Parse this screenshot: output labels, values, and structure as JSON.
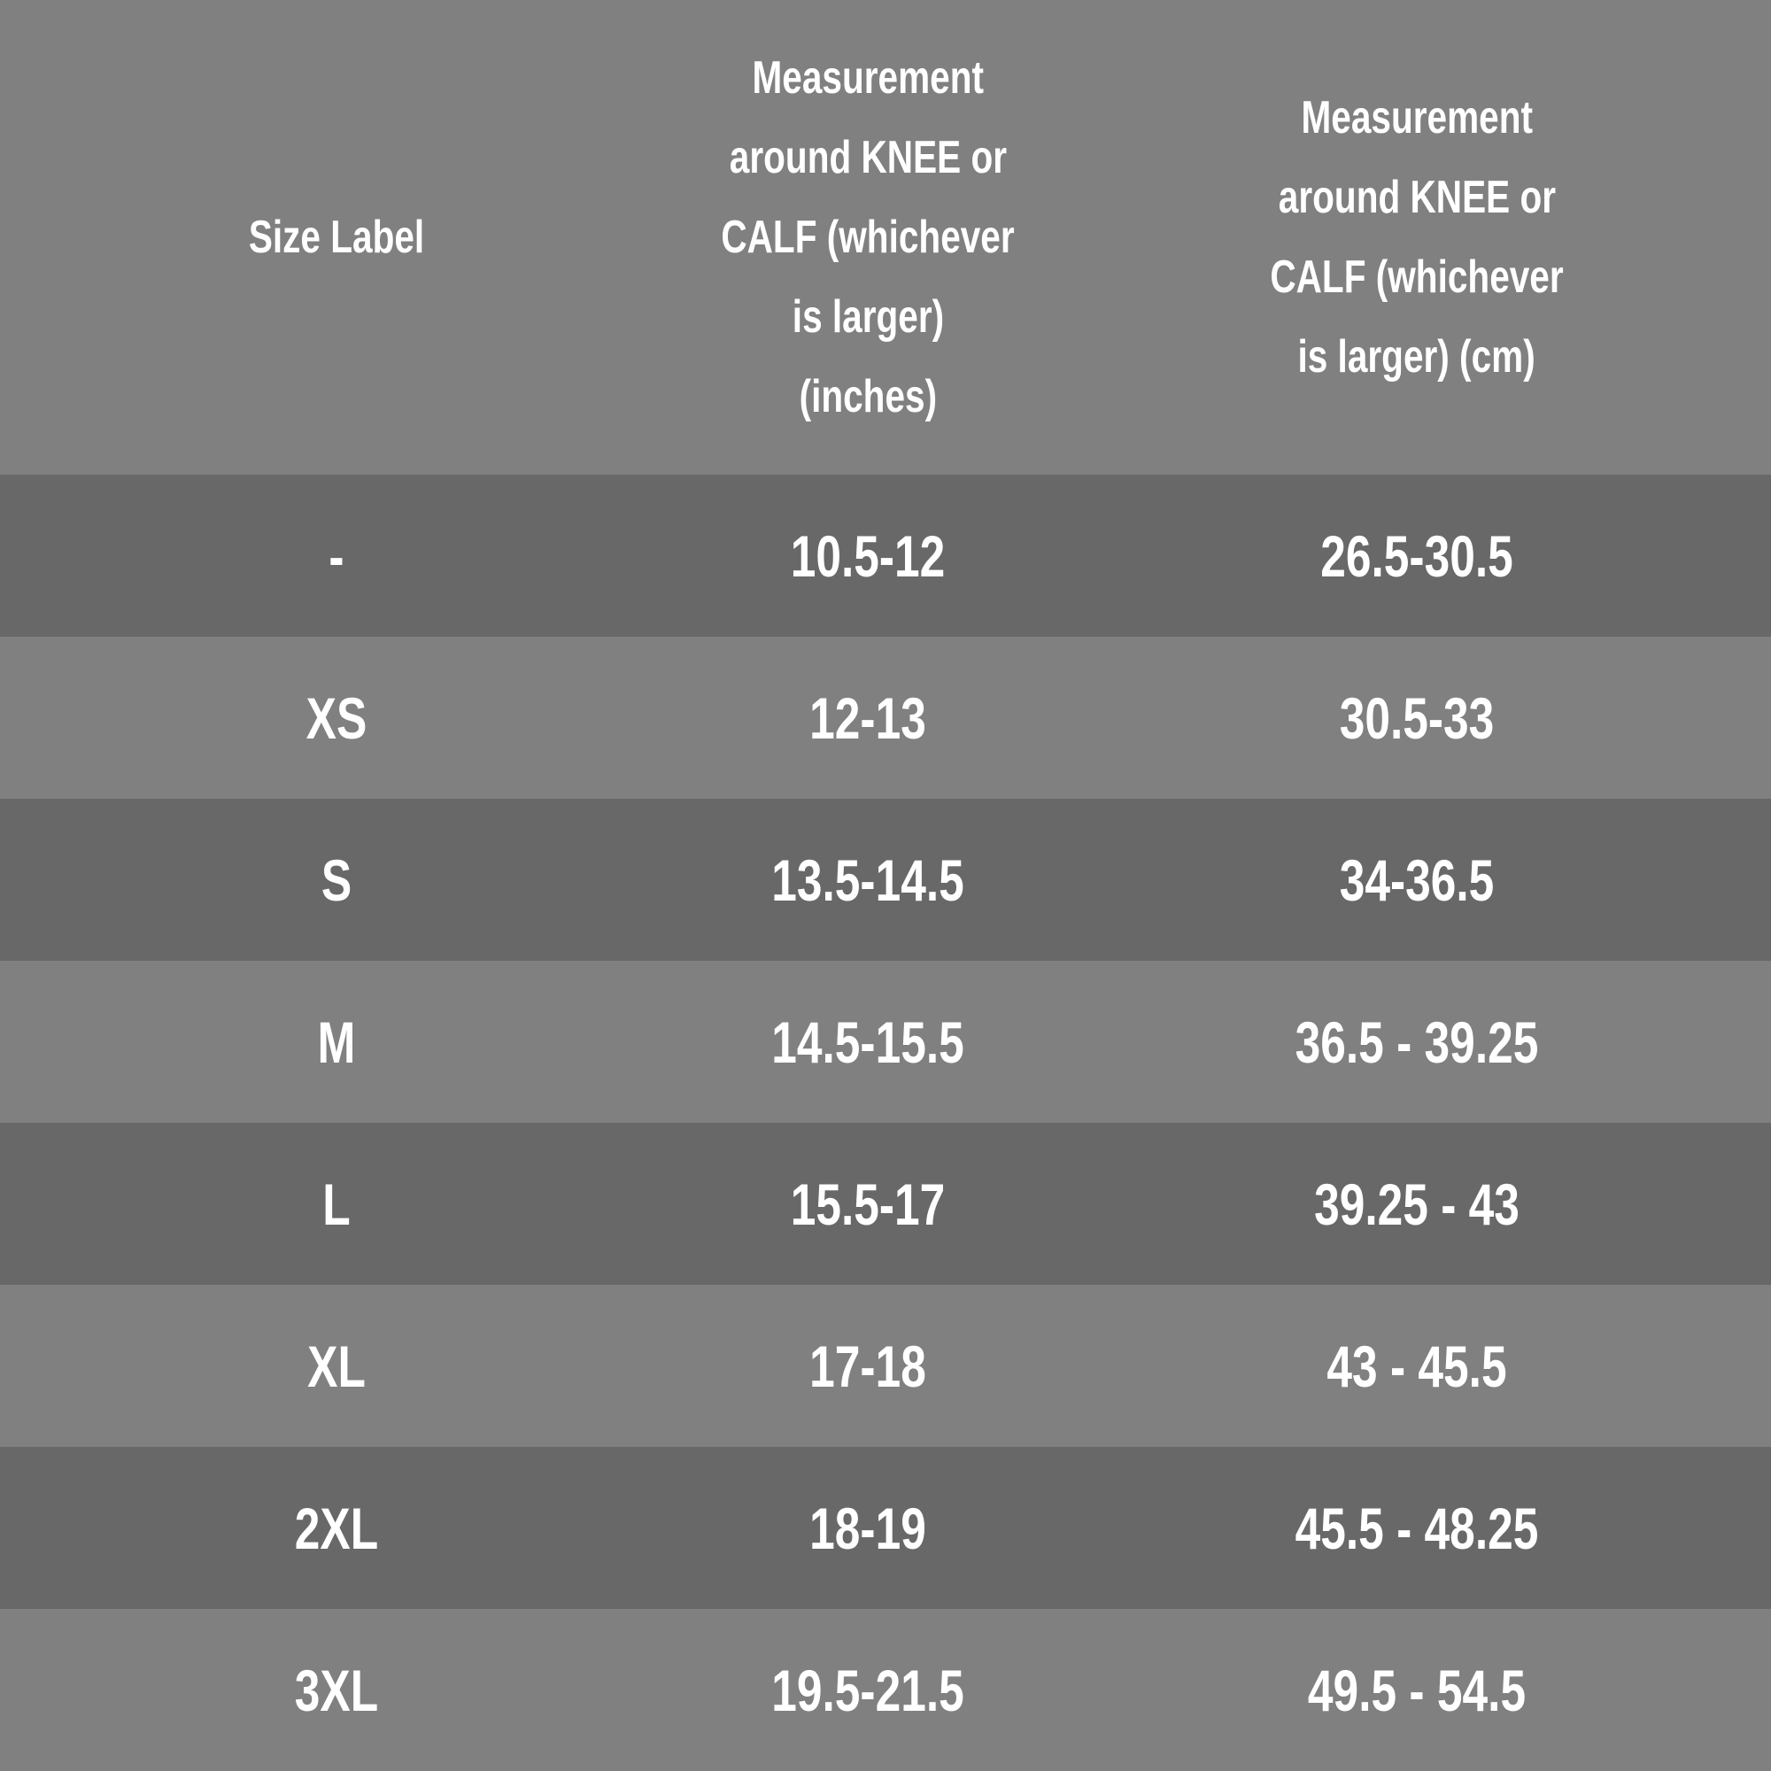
{
  "table": {
    "header": [
      [
        "Size Label"
      ],
      [
        "Measurement",
        "around KNEE or",
        "CALF (whichever",
        "is larger)",
        "(inches)"
      ],
      [
        "Measurement",
        "around KNEE or",
        "CALF (whichever",
        "is larger) (cm)"
      ]
    ],
    "rows": [
      [
        "-",
        "10.5-12",
        "26.5-30.5"
      ],
      [
        "XS",
        "12-13",
        "30.5-33"
      ],
      [
        "S",
        "13.5-14.5",
        "34-36.5"
      ],
      [
        "M",
        "14.5-15.5",
        "36.5 - 39.25"
      ],
      [
        "L",
        "15.5-17",
        "39.25 - 43"
      ],
      [
        "XL",
        "17-18",
        "43 - 45.5"
      ],
      [
        "2XL",
        "18-19",
        "45.5 - 48.25"
      ],
      [
        "3XL",
        "19.5-21.5",
        "49.5 - 54.5"
      ]
    ]
  }
}
